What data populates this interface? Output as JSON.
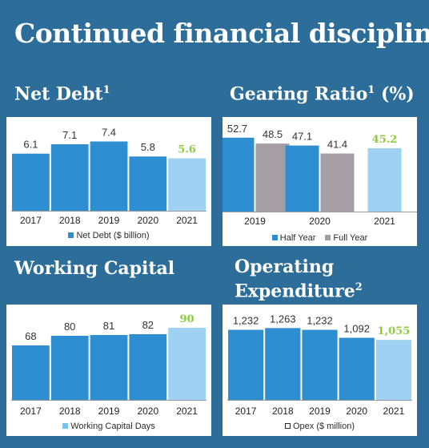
{
  "page": {
    "title": "Continued financial discipline"
  },
  "colors": {
    "background": "#2d6d9a",
    "bar_blue": "#2e8ed2",
    "bar_light": "#9fd2f2",
    "bar_grey": "#a59ea4",
    "highlight_label": "#8ccc3c",
    "panel": "#ffffff"
  },
  "chart_data": [
    {
      "id": "net-debt",
      "type": "bar",
      "title": "Net Debt",
      "title_sup": "1",
      "categories": [
        "2017",
        "2018",
        "2019",
        "2020",
        "2021"
      ],
      "series": [
        {
          "name": "Net Debt ($ billion)",
          "values": [
            6.1,
            7.1,
            7.4,
            5.8,
            5.6
          ],
          "value_labels": [
            "6.1",
            "7.1",
            "7.4",
            "5.8",
            "5.6"
          ]
        }
      ],
      "highlight_index": 4,
      "ylim": [
        0,
        9.5
      ],
      "legend": [
        "Net Debt ($ billion)"
      ]
    },
    {
      "id": "gearing-ratio",
      "type": "bar",
      "title": "Gearing Ratio",
      "title_sup": "1",
      "title_suffix": " (%)",
      "categories": [
        "2019",
        "2020",
        "2021"
      ],
      "series": [
        {
          "name": "Half Year",
          "values": [
            52.7,
            47.1,
            45.2
          ],
          "value_labels": [
            "52.7",
            "47.1",
            "45.2"
          ]
        },
        {
          "name": "Full Year",
          "values": [
            48.5,
            41.4,
            null
          ],
          "value_labels": [
            "48.5",
            "41.4",
            ""
          ]
        }
      ],
      "highlight": {
        "series": 0,
        "index": 2
      },
      "ylim": [
        0,
        64
      ],
      "legend": [
        "Half Year",
        "Full Year"
      ]
    },
    {
      "id": "working-capital",
      "type": "bar",
      "title": "Working Capital",
      "categories": [
        "2017",
        "2018",
        "2019",
        "2020",
        "2021"
      ],
      "series": [
        {
          "name": "Working Capital Days",
          "values": [
            68,
            80,
            81,
            82,
            90
          ],
          "value_labels": [
            "68",
            "80",
            "81",
            "82",
            "90"
          ]
        }
      ],
      "highlight_index": 4,
      "ylim": [
        0,
        115
      ],
      "legend": [
        "Working Capital Days"
      ]
    },
    {
      "id": "operating-expenditure",
      "type": "bar",
      "title_lines": [
        "Operating",
        "Expenditure"
      ],
      "title_sup": "2",
      "categories": [
        "2017",
        "2018",
        "2019",
        "2020",
        "2021"
      ],
      "series": [
        {
          "name": "Opex ($ million)",
          "values": [
            1232,
            1263,
            1232,
            1092,
            1055
          ],
          "value_labels": [
            "1,232",
            "1,263",
            "1,232",
            "1,092",
            "1,055"
          ]
        }
      ],
      "highlight_index": 4,
      "ylim": [
        0,
        1620
      ],
      "legend": [
        "Opex ($ million)"
      ]
    }
  ]
}
